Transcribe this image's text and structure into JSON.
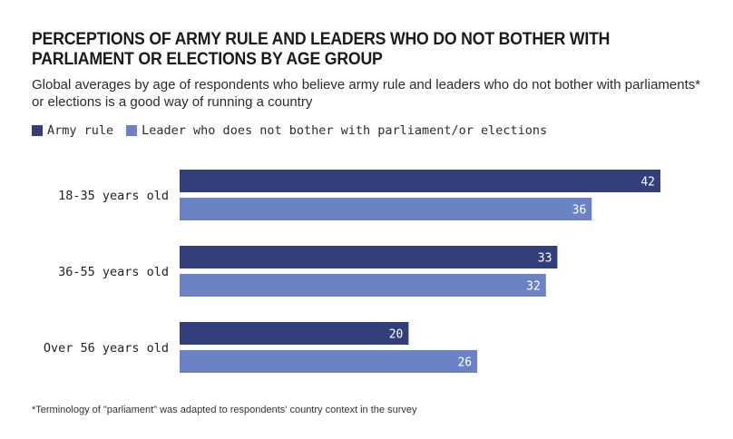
{
  "title": "PERCEPTIONS OF ARMY RULE AND LEADERS WHO DO NOT BOTHER WITH PARLIAMENT OR ELECTIONS BY AGE GROUP",
  "subtitle": "Global averages by age of respondents who believe army rule and leaders who do not bother with parliaments* or elections is a good way of running a country",
  "footnote": "*Terminology of \"parliament\" was adapted to respondents' country context in the survey",
  "colors": {
    "army": "#323f7a",
    "leader": "#6b82c4",
    "label_text": "#ffffff"
  },
  "chart_data": {
    "type": "bar",
    "orientation": "horizontal",
    "categories": [
      "18-35 years old",
      "36-55 years old",
      "Over 56 years old"
    ],
    "series": [
      {
        "name": "Army rule",
        "values": [
          42,
          33,
          20
        ]
      },
      {
        "name": "Leader who does not bother with parliament/or elections",
        "values": [
          36,
          32,
          26
        ]
      }
    ],
    "xlim": [
      0,
      42
    ],
    "grid": false,
    "legend_position": "top-left",
    "data_labels": true
  }
}
